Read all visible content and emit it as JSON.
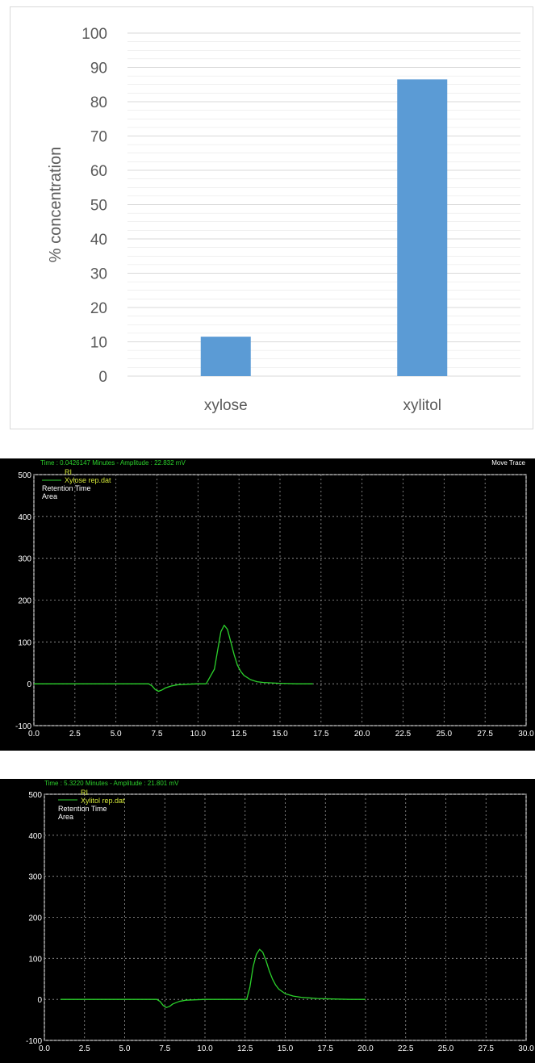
{
  "chart_data": [
    {
      "type": "bar",
      "categories": [
        "xylose",
        "xylitol"
      ],
      "values": [
        11.5,
        86.5
      ],
      "ylabel": "% concentration",
      "xlabel": "",
      "ylim": [
        0,
        100
      ],
      "yticks": [
        "0",
        "10",
        "20",
        "30",
        "40",
        "50",
        "60",
        "70",
        "80",
        "90",
        "100"
      ],
      "grid": true,
      "colors": {
        "bar": "#5b9bd5",
        "grid": "#d9d9d9",
        "text": "#595959"
      }
    },
    {
      "type": "line",
      "header": "Time : 0.0426147 Minutes - Amplitude : 22.832 mV",
      "move_trace": "Move Trace",
      "legend": {
        "detector": "RI",
        "file": "Xylose rep.dat",
        "info1": "Retention Time",
        "info2": "Area"
      },
      "xlim": [
        0,
        30
      ],
      "ylim": [
        -100,
        500
      ],
      "xticks": [
        "0.0",
        "2.5",
        "5.0",
        "7.5",
        "10.0",
        "12.5",
        "15.0",
        "17.5",
        "20.0",
        "22.5",
        "25.0",
        "27.5",
        "30.0"
      ],
      "yticks": [
        "-100",
        "0",
        "100",
        "200",
        "300",
        "400",
        "500"
      ],
      "grid": true,
      "series": [
        {
          "name": "Xylose rep.dat",
          "x": [
            0,
            1,
            2,
            3,
            4,
            5,
            6,
            7,
            7.2,
            7.4,
            7.6,
            7.8,
            8.0,
            8.4,
            8.8,
            9.4,
            10.0,
            10.5,
            11.0,
            11.2,
            11.4,
            11.6,
            11.8,
            12.0,
            12.2,
            12.4,
            12.6,
            12.8,
            13.2,
            13.6,
            14.0,
            15.0,
            16.0,
            17.0
          ],
          "y": [
            0,
            0,
            0,
            0,
            0,
            0,
            0,
            0,
            -5,
            -14,
            -18,
            -15,
            -10,
            -5,
            -2,
            -1,
            0,
            0,
            35,
            80,
            125,
            140,
            130,
            100,
            70,
            45,
            30,
            20,
            10,
            5,
            3,
            1,
            0,
            0
          ]
        }
      ],
      "colors": {
        "bg": "#000000",
        "line": "#2bd12b",
        "grid": "#9a9a9a",
        "text": "#ffffff"
      }
    },
    {
      "type": "line",
      "header": "Time : 5.3220 Minutes - Amplitude : 21.801 mV",
      "legend": {
        "detector": "RI",
        "file": "Xylitol rep.dat",
        "info1": "Retention Time",
        "info2": "Area"
      },
      "xlim": [
        0,
        30
      ],
      "ylim": [
        -100,
        500
      ],
      "xticks": [
        "0.0",
        "2.5",
        "5.0",
        "7.5",
        "10.0",
        "12.5",
        "15.0",
        "17.5",
        "20.0",
        "22.5",
        "25.0",
        "27.5",
        "30.0"
      ],
      "yticks": [
        "-100",
        "0",
        "100",
        "200",
        "300",
        "400",
        "500"
      ],
      "grid": true,
      "series": [
        {
          "name": "Xylitol rep.dat",
          "x": [
            1,
            2,
            3,
            4,
            5,
            6,
            7,
            7.2,
            7.4,
            7.6,
            7.8,
            8.0,
            8.4,
            8.8,
            9.4,
            10.0,
            11.0,
            12.0,
            12.6,
            12.8,
            13.0,
            13.2,
            13.4,
            13.6,
            13.8,
            14.0,
            14.2,
            14.4,
            14.6,
            15.0,
            15.5,
            16.0,
            17.0,
            18.0,
            19.0,
            20.0
          ],
          "y": [
            0,
            0,
            0,
            0,
            0,
            0,
            0,
            -5,
            -15,
            -20,
            -17,
            -11,
            -5,
            -2,
            -1,
            0,
            0,
            0,
            0,
            30,
            80,
            110,
            122,
            115,
            95,
            70,
            50,
            35,
            25,
            14,
            8,
            5,
            2,
            1,
            0,
            0
          ]
        }
      ],
      "colors": {
        "bg": "#000000",
        "line": "#2bd12b",
        "grid": "#9a9a9a",
        "text": "#ffffff"
      }
    }
  ]
}
